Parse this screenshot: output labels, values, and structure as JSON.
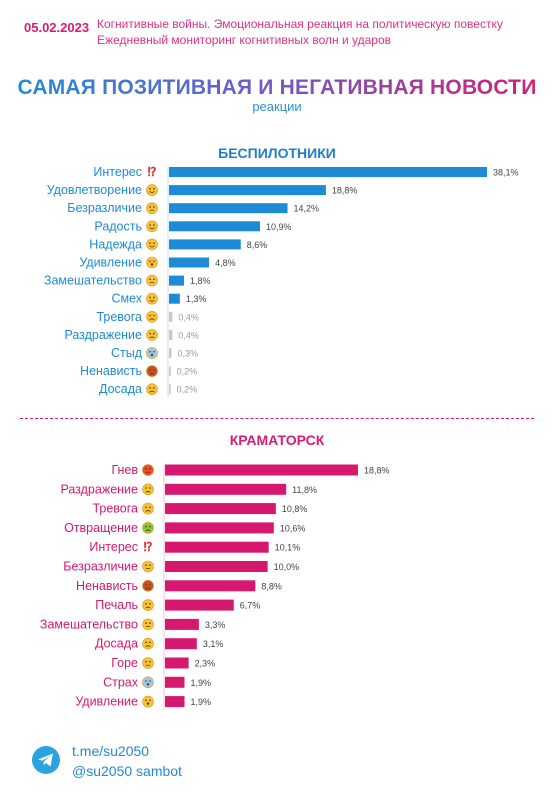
{
  "header": {
    "date": "05.02.2023",
    "line1": "Когнитивные войны. Эмоциональная реакция на политическую повестку",
    "line2": "Ежедневный мониторинг когнитивных волн и ударов"
  },
  "title": "САМАЯ ПОЗИТИВНАЯ И НЕГАТИВНАЯ НОВОСТИ",
  "subtitle": "реакции",
  "colors": {
    "blue": "#1f8ad6",
    "pink": "#d6186f",
    "faint": "#c8c8c8"
  },
  "chart_data": [
    {
      "type": "bar",
      "orientation": "horizontal",
      "title": "БЕСПИЛОТНИКИ",
      "categories": [
        "Интерес",
        "Удовлетворение",
        "Безразличие",
        "Радость",
        "Надежда",
        "Удивление",
        "Замешательство",
        "Смех",
        "Тревога",
        "Раздражение",
        "Стыд",
        "Ненависть",
        "Досада"
      ],
      "icons": [
        "exclamation-question",
        "smile-emoji",
        "neutral-emoji",
        "grin-emoji",
        "pray-emoji",
        "surprised-emoji",
        "confused-emoji",
        "laugh-emoji",
        "worried-emoji",
        "annoyed-emoji",
        "scream-emoji",
        "angry-emoji",
        "frown-emoji"
      ],
      "values": [
        38.1,
        18.8,
        14.2,
        10.9,
        8.6,
        4.8,
        1.8,
        1.3,
        0.4,
        0.4,
        0.3,
        0.2,
        0.2
      ],
      "labels": [
        "38,1%",
        "18,8%",
        "14,2%",
        "10,9%",
        "8,6%",
        "4,8%",
        "1,8%",
        "1,3%",
        "0,4%",
        "0,4%",
        "0,3%",
        "0,2%",
        "0,2%"
      ],
      "xlim": [
        0,
        38.1
      ],
      "color": "#1f8ad6"
    },
    {
      "type": "bar",
      "orientation": "horizontal",
      "title": "КРАМАТОРСК",
      "categories": [
        "Гнев",
        "Раздражение",
        "Тревога",
        "Отвращение",
        "Интерес",
        "Безразличие",
        "Ненависть",
        "Печаль",
        "Замешательство",
        "Досада",
        "Горе",
        "Страх",
        "Удивление"
      ],
      "icons": [
        "rage-emoji",
        "annoyed-emoji",
        "worried-emoji",
        "nauseated-emoji",
        "exclamation-question",
        "neutral-emoji",
        "angry-emoji",
        "sad-emoji",
        "confused-emoji",
        "frown-emoji",
        "crying-emoji",
        "scream-emoji",
        "surprised-emoji"
      ],
      "values": [
        18.8,
        11.8,
        10.8,
        10.6,
        10.1,
        10.0,
        8.8,
        6.7,
        3.3,
        3.1,
        2.3,
        1.9,
        1.9
      ],
      "labels": [
        "18,8%",
        "11,8%",
        "10,8%",
        "10,6%",
        "10,1%",
        "10,0%",
        "8,8%",
        "6,7%",
        "3,3%",
        "3,1%",
        "2,3%",
        "1,9%",
        "1,9%"
      ],
      "xlim": [
        0,
        18.8
      ],
      "color": "#d6186f"
    }
  ],
  "footer": {
    "link": "t.me/su2050",
    "bot": "@su2050 sambot",
    "icon": "telegram-icon"
  }
}
